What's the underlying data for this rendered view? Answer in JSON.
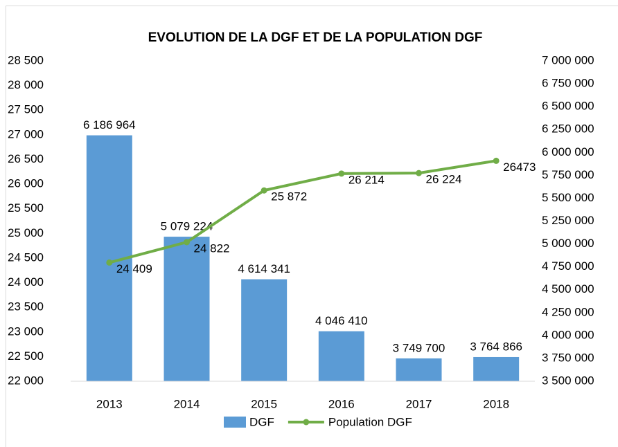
{
  "chart_data": {
    "type": "bar-line",
    "title": "EVOLUTION DE LA DGF ET DE LA POPULATION DGF",
    "categories": [
      "2013",
      "2014",
      "2015",
      "2016",
      "2017",
      "2018"
    ],
    "series": [
      {
        "name": "DGF",
        "type": "bar",
        "axis": "y2",
        "color": "#5b9bd5",
        "values": [
          6186964,
          5079224,
          4614341,
          4046410,
          3749700,
          3764866
        ],
        "value_labels": [
          "6 186 964",
          "5 079 224",
          "4 614 341",
          "4 046 410",
          "3 749 700",
          "3 764 866"
        ]
      },
      {
        "name": "Population DGF",
        "type": "line",
        "axis": "y",
        "color": "#70ad47",
        "values": [
          24409,
          24822,
          25872,
          26214,
          26224,
          26473
        ],
        "value_labels": [
          "24 409",
          "24 822",
          "25 872",
          "26 214",
          "26 224",
          "26473"
        ]
      }
    ],
    "ylim": [
      22000,
      28500
    ],
    "yticks": [
      {
        "value": 22000,
        "label": "22 000"
      },
      {
        "value": 22500,
        "label": "22 500"
      },
      {
        "value": 23000,
        "label": "23 000"
      },
      {
        "value": 23500,
        "label": "23 500"
      },
      {
        "value": 24000,
        "label": "24 000"
      },
      {
        "value": 24500,
        "label": "24 500"
      },
      {
        "value": 25000,
        "label": "25 000"
      },
      {
        "value": 25500,
        "label": "25 500"
      },
      {
        "value": 26000,
        "label": "26 000"
      },
      {
        "value": 26500,
        "label": "26 500"
      },
      {
        "value": 27000,
        "label": "27 000"
      },
      {
        "value": 27500,
        "label": "27 500"
      },
      {
        "value": 28000,
        "label": "28 000"
      },
      {
        "value": 28500,
        "label": "28 500"
      }
    ],
    "y2lim": [
      3500000,
      7000000
    ],
    "y2ticks": [
      {
        "value": 3500000,
        "label": "3 500 000"
      },
      {
        "value": 3750000,
        "label": "3 750 000"
      },
      {
        "value": 4000000,
        "label": "4 000 000"
      },
      {
        "value": 4250000,
        "label": "4 250 000"
      },
      {
        "value": 4500000,
        "label": "4 500 000"
      },
      {
        "value": 4750000,
        "label": "4 750 000"
      },
      {
        "value": 5000000,
        "label": "5 000 000"
      },
      {
        "value": 5250000,
        "label": "5 250 000"
      },
      {
        "value": 5500000,
        "label": "5 500 000"
      },
      {
        "value": 5750000,
        "label": "5 750 000"
      },
      {
        "value": 6000000,
        "label": "6 000 000"
      },
      {
        "value": 6250000,
        "label": "6 250 000"
      },
      {
        "value": 6500000,
        "label": "6 500 000"
      },
      {
        "value": 6750000,
        "label": "6 750 000"
      },
      {
        "value": 7000000,
        "label": "7 000 000"
      }
    ],
    "legend": "bottom"
  }
}
